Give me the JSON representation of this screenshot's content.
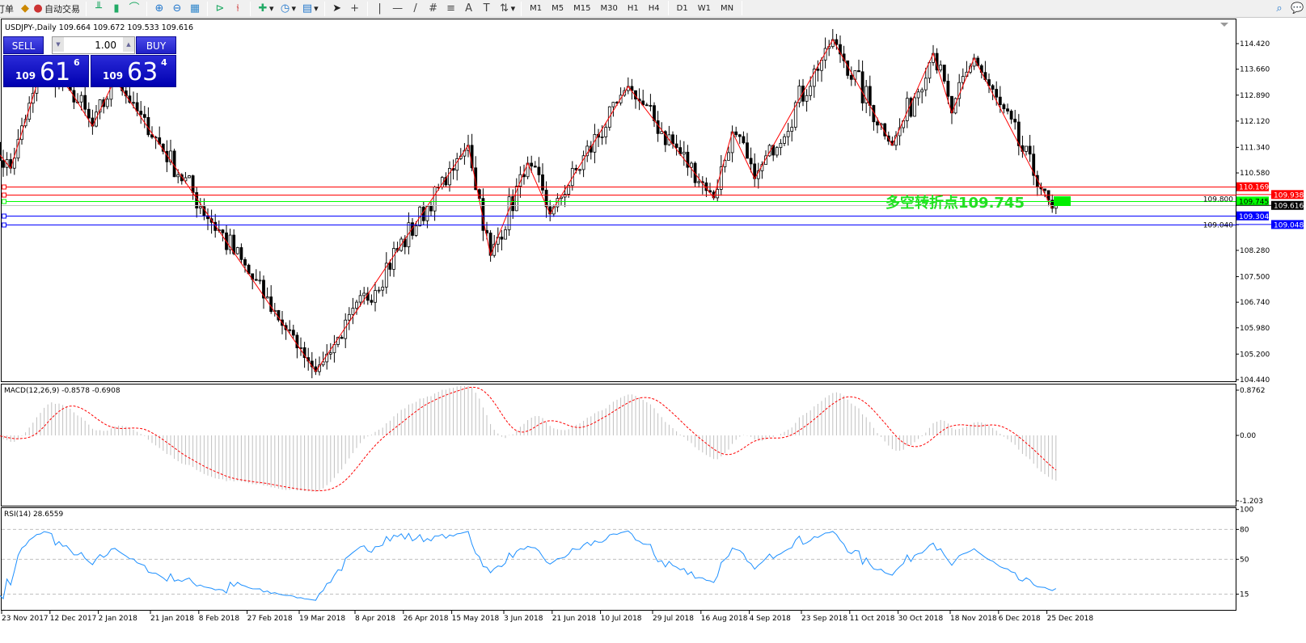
{
  "toolbar": {
    "order_label": "订单",
    "autotrade_label": "自动交易",
    "timeframes": [
      "M1",
      "M5",
      "M15",
      "M30",
      "H1",
      "H4",
      "D1",
      "W1",
      "MN"
    ],
    "icons": [
      "bar-chart-icon",
      "candlestick-icon",
      "line-chart-icon",
      "zoom-in-icon",
      "zoom-out-icon",
      "tile-windows-icon",
      "autoscroll-icon",
      "chart-shift-icon",
      "indicators-icon",
      "periods-icon",
      "templates-icon",
      "cursor-icon",
      "crosshair-icon",
      "vertical-line-icon",
      "horizontal-line-icon",
      "trendline-icon",
      "equidistant-channel-icon",
      "fibonacci-icon",
      "text-icon",
      "text-label-icon",
      "arrows-icon",
      "search-icon",
      "chat-icon"
    ]
  },
  "chart": {
    "title": "USDJPY-,Daily  109.664 109.672 109.533 109.616",
    "symbol": "USDJPY-",
    "timeframe": "Daily",
    "ohlc": {
      "open": 109.664,
      "high": 109.672,
      "low": 109.533,
      "close": 109.616
    }
  },
  "trade_panel": {
    "sell_label": "SELL",
    "buy_label": "BUY",
    "lot": "1.00",
    "sell_price": {
      "big_figure": "109",
      "pips": "61",
      "fraction": "6"
    },
    "buy_price": {
      "big_figure": "109",
      "pips": "63",
      "fraction": "4"
    }
  },
  "annotation": {
    "text": "多空转折点109.745",
    "color": "#22e022"
  },
  "chart_data": [
    {
      "type": "candlestick",
      "price_ticks": [
        "114.420",
        "113.660",
        "112.890",
        "112.120",
        "111.340",
        "110.580",
        "109.800",
        "109.040",
        "108.280",
        "107.500",
        "106.740",
        "105.980",
        "105.200",
        "104.440"
      ],
      "ylim": [
        104.44,
        114.42
      ],
      "date_ticks": [
        "23 Nov 2017",
        "12 Dec 2017",
        "2 Jan 2018",
        "21 Jan 2018",
        "8 Feb 2018",
        "27 Feb 2018",
        "19 Mar 2018",
        "8 Apr 2018",
        "26 Apr 2018",
        "15 May 2018",
        "3 Jun 2018",
        "21 Jun 2018",
        "10 Jul 2018",
        "29 Jul 2018",
        "16 Aug 2018",
        "4 Sep 2018",
        "23 Sep 2018",
        "11 Oct 2018",
        "30 Oct 2018",
        "18 Nov 2018",
        "6 Dec 2018",
        "25 Dec 2018"
      ],
      "zigzag": [
        {
          "date": "2017-11-20",
          "price": 111.4
        },
        {
          "date": "2017-11-27",
          "price": 110.72
        },
        {
          "date": "2017-12-08",
          "price": 113.9
        },
        {
          "date": "2017-12-19",
          "price": 113.03
        },
        {
          "date": "2017-12-28",
          "price": 111.97
        },
        {
          "date": "2018-01-08",
          "price": 113.36
        },
        {
          "date": "2018-03-23",
          "price": 104.68
        },
        {
          "date": "2018-05-21",
          "price": 111.4
        },
        {
          "date": "2018-05-29",
          "price": 108.13
        },
        {
          "date": "2018-06-12",
          "price": 110.87
        },
        {
          "date": "2018-06-20",
          "price": 109.36
        },
        {
          "date": "2018-07-19",
          "price": 113.15
        },
        {
          "date": "2018-08-21",
          "price": 109.84
        },
        {
          "date": "2018-08-28",
          "price": 111.8
        },
        {
          "date": "2018-09-05",
          "price": 110.41
        },
        {
          "date": "2018-10-04",
          "price": 114.54
        },
        {
          "date": "2018-10-26",
          "price": 111.4
        },
        {
          "date": "2018-11-12",
          "price": 114.13
        },
        {
          "date": "2018-11-19",
          "price": 112.36
        },
        {
          "date": "2018-11-27",
          "price": 113.99
        },
        {
          "date": "2018-12-27",
          "price": 109.53
        },
        {
          "date": "2018-12-28",
          "price": 109.616
        }
      ],
      "zigzag_color": "#ff0000",
      "horizontal_lines": [
        {
          "price": "110.169",
          "color": "#ff0000"
        },
        {
          "price": "109.938",
          "color": "#ff0000"
        },
        {
          "price": "109.745",
          "color": "#00ff00"
        },
        {
          "price": "109.616",
          "color": "#c0c0c0",
          "label_bg": "#000000"
        },
        {
          "price": "109.304",
          "color": "#0000ff"
        },
        {
          "price": "109.048",
          "color": "#0000ff"
        }
      ]
    },
    {
      "type": "macd",
      "title": "MACD(12,26,9) -0.8578 -0.6908",
      "params": [
        12,
        26,
        9
      ],
      "last_main": -0.8578,
      "last_signal": -0.6908,
      "ticks": [
        "0.8762",
        "0.00",
        "-1.203"
      ],
      "ylim": [
        -1.203,
        0.8762
      ],
      "histogram_color": "#c0c0c0",
      "signal_color": "#ff0000"
    },
    {
      "type": "rsi",
      "title": "RSI(14) 28.6559",
      "period": 14,
      "last": 28.6559,
      "ticks": [
        "100",
        "80",
        "50",
        "15"
      ],
      "levels": [
        80,
        50,
        15
      ],
      "ylim": [
        0,
        100
      ],
      "line_color": "#1e90ff"
    }
  ]
}
